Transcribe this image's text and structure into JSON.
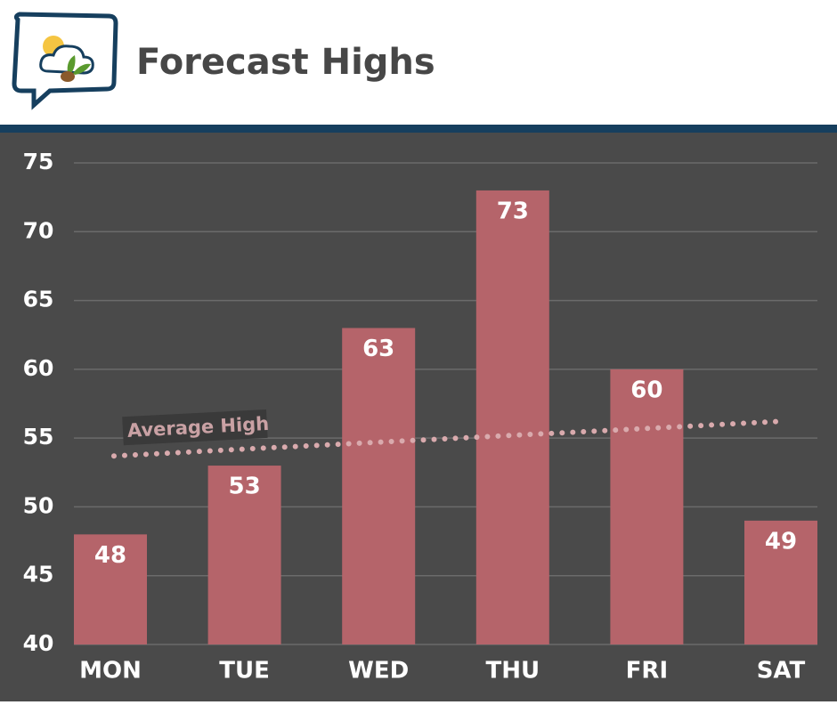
{
  "chart_data": {
    "type": "bar",
    "title": "Forecast Highs",
    "categories": [
      "MON",
      "TUE",
      "WED",
      "THU",
      "FRI",
      "SAT"
    ],
    "values": [
      48,
      53,
      63,
      73,
      60,
      49
    ],
    "color": "#b5646a",
    "ylim": [
      40,
      75
    ],
    "yticks": [
      40,
      45,
      50,
      55,
      60,
      65,
      70,
      75
    ],
    "grid": true,
    "overlay": {
      "type": "line",
      "name": "Average High",
      "color": "#d9aaad",
      "style": "dotted",
      "values": [
        53.7,
        54.2,
        54.7,
        55.2,
        55.7,
        56.2
      ]
    }
  }
}
